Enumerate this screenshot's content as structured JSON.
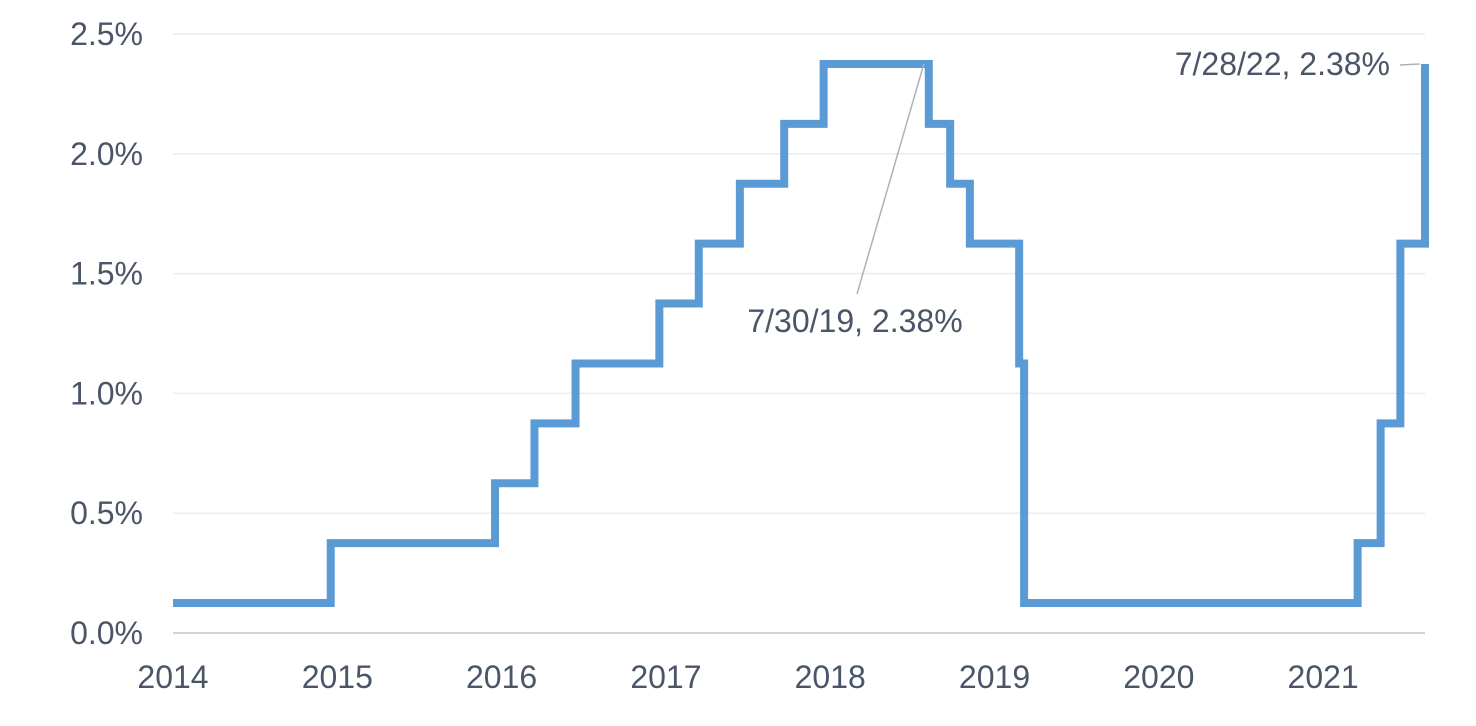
{
  "chart_data": {
    "type": "line",
    "title": "",
    "xlabel": "",
    "ylabel": "",
    "line_shape": "step",
    "xlim": [
      2014,
      2021.62
    ],
    "ylim": [
      0,
      2.5
    ],
    "x_ticks": [
      2014,
      2015,
      2016,
      2017,
      2018,
      2019,
      2020,
      2021
    ],
    "x_tick_labels": [
      "2014",
      "2015",
      "2016",
      "2017",
      "2018",
      "2019",
      "2020",
      "2021"
    ],
    "y_ticks": [
      0,
      0.5,
      1.0,
      1.5,
      2.0,
      2.5
    ],
    "y_tick_labels": [
      "0.0%",
      "0.5%",
      "1.0%",
      "1.5%",
      "2.0%",
      "2.5%"
    ],
    "grid": true,
    "color": "#5b9bd5",
    "series": [
      {
        "x": [
          2014.0,
          2014.96,
          2015.96,
          2016.2,
          2016.45,
          2016.96,
          2017.2,
          2017.45,
          2017.72,
          2017.96,
          2018.6,
          2018.73,
          2018.85,
          2019.15,
          2019.18,
          2021.21,
          2021.35,
          2021.47,
          2021.62
        ],
        "y": [
          0.125,
          0.375,
          0.625,
          0.875,
          1.125,
          1.375,
          1.625,
          1.875,
          2.125,
          2.375,
          2.125,
          1.875,
          1.625,
          1.125,
          0.125,
          0.375,
          0.875,
          1.625,
          2.375
        ]
      }
    ],
    "annotations": [
      {
        "text": "7/30/19, 2.38%",
        "x": 2018.57,
        "y": 2.375
      },
      {
        "text": "7/28/22, 2.38%",
        "x": 2021.6,
        "y": 2.375
      }
    ]
  }
}
